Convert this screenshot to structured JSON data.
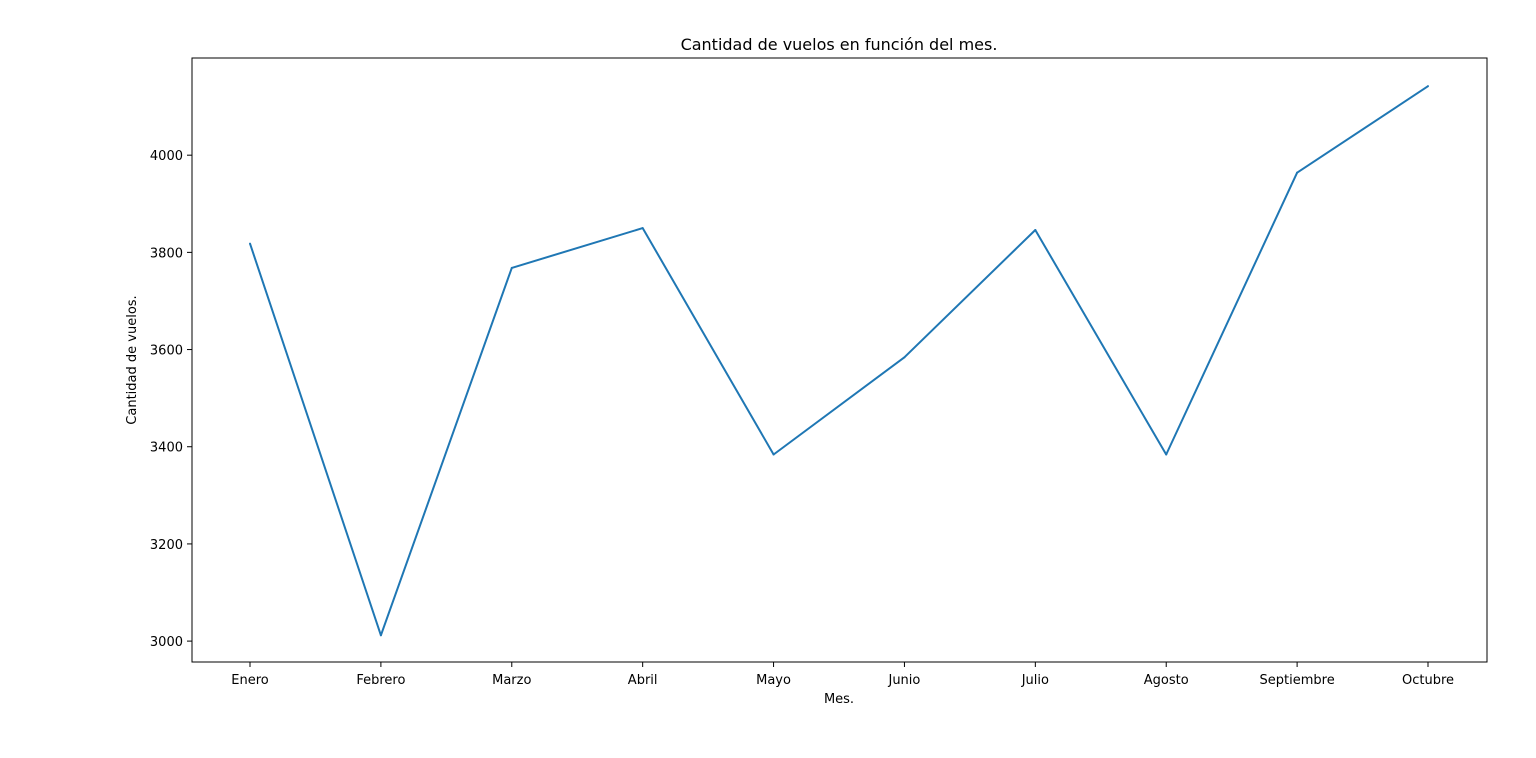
{
  "chart_data": {
    "type": "line",
    "title": "Cantidad de vuelos en función del mes.",
    "xlabel": "Mes.",
    "ylabel": "Cantidad de vuelos.",
    "categories": [
      "Enero",
      "Febrero",
      "Marzo",
      "Abril",
      "Mayo",
      "Junio",
      "Julio",
      "Agosto",
      "Septiembre",
      "Octubre"
    ],
    "series": [
      {
        "values": [
          3818,
          3012,
          3768,
          3850,
          3384,
          3584,
          3846,
          3384,
          3964,
          4142
        ],
        "color": "#1f77b4"
      }
    ],
    "yticks": [
      3000,
      3200,
      3400,
      3600,
      3800,
      4000
    ],
    "ylim": [
      2957,
      4200
    ],
    "grid": false,
    "legend": "none"
  }
}
